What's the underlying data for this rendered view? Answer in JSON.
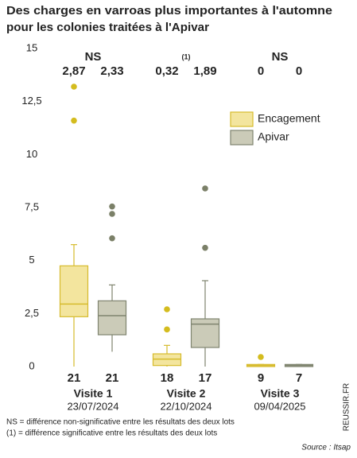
{
  "chart_data": {
    "type": "box",
    "title": [
      "Des charges en varroas plus importantes à l'automne",
      "pour les colonies traitées à l'Apivar"
    ],
    "categories": [
      "Visite 1",
      "Visite 2",
      "Visite 3"
    ],
    "dates": [
      "23/07/2024",
      "22/10/2024",
      "09/04/2025"
    ],
    "significance": [
      "NS",
      "(1)",
      "NS"
    ],
    "ylim": [
      0,
      15
    ],
    "yticks": [
      0,
      {
        "value": 2.5,
        "label": "2,5"
      },
      5,
      {
        "value": 7.5,
        "label": "7,5"
      },
      10,
      {
        "value": 12.5,
        "label": "12,5"
      },
      15
    ],
    "series": [
      {
        "name": "Encagement",
        "color": "#f3e59e",
        "edge_color": "#d6bb2c",
        "point_color": "#d4bc1e",
        "whisker_low": [
          0,
          0,
          0
        ],
        "q1": [
          2.35,
          0.05,
          0
        ],
        "median": [
          2.95,
          0.35,
          0.05
        ],
        "q3": [
          4.75,
          0.6,
          0.1
        ],
        "whisker_high": [
          5.75,
          1.0,
          0.1
        ],
        "outliers": [
          [
            13.2,
            11.6
          ],
          [
            2.7,
            1.75
          ],
          [
            0.45
          ]
        ],
        "means": [
          2.87,
          0.32,
          0
        ],
        "mean_labels": [
          "2,87",
          "0,32",
          "0"
        ],
        "n": [
          21,
          18,
          9
        ]
      },
      {
        "name": "Apivar",
        "color": "#cbcbb8",
        "edge_color": "#7f846f",
        "point_color": "#7b8068",
        "whisker_low": [
          0.7,
          0,
          0
        ],
        "q1": [
          1.5,
          0.9,
          0
        ],
        "median": [
          2.4,
          2.0,
          0.05
        ],
        "q3": [
          3.1,
          2.25,
          0.1
        ],
        "whisker_high": [
          3.85,
          4.05,
          0.1
        ],
        "outliers": [
          [
            7.55,
            7.2,
            6.05
          ],
          [
            8.4,
            5.6
          ],
          []
        ],
        "means": [
          2.33,
          1.89,
          0
        ],
        "mean_labels": [
          "2,33",
          "1,89",
          "0"
        ],
        "n": [
          21,
          17,
          7
        ]
      }
    ],
    "notes": [
      "NS = différence non-significative entre les résultats des deux lots",
      "(1) = différence significative entre les résultats des deux lots"
    ],
    "source": "Source : Itsap",
    "credit": "REUSSIR.FR"
  }
}
